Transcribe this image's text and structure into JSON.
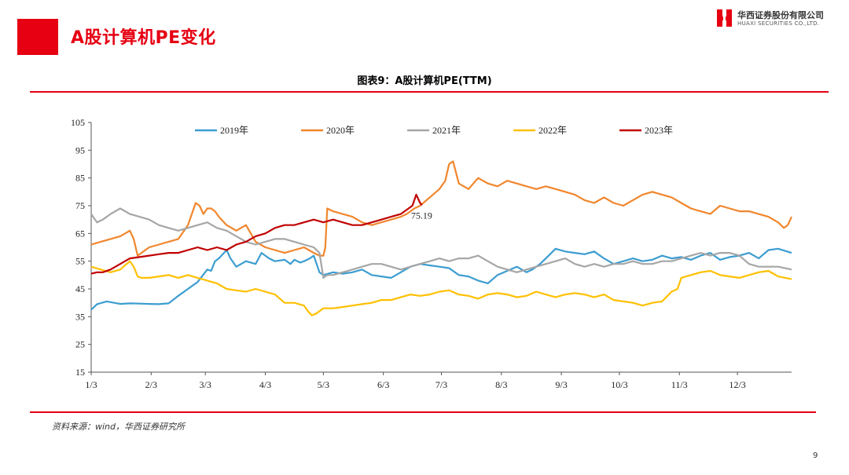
{
  "page": {
    "heading": "A股计算机PE变化",
    "page_number": "9"
  },
  "logo": {
    "cn": "华西证券股份有限公司",
    "en": "HUAXI SECURITIES CO.,LTD."
  },
  "chart_title": "图表9：A股计算机PE(TTM)",
  "source": "资料来源：wind，华西证券研究所",
  "colors": {
    "accent": "#e60012"
  },
  "chart_data": {
    "type": "line",
    "title": "图表9：A股计算机PE(TTM)",
    "xlabel": "",
    "ylabel": "",
    "x_ticks": [
      "1/3",
      "2/3",
      "3/3",
      "4/3",
      "5/3",
      "6/3",
      "7/3",
      "8/3",
      "9/3",
      "10/3",
      "11/3",
      "12/3"
    ],
    "x_tick_days": [
      0,
      31,
      59,
      90,
      120,
      151,
      181,
      212,
      243,
      273,
      304,
      334
    ],
    "xlim_days": [
      0,
      362
    ],
    "ylim": [
      15,
      105
    ],
    "y_ticks": [
      15,
      25,
      35,
      45,
      55,
      65,
      75,
      85,
      95,
      105
    ],
    "grid": false,
    "legend_position": "top",
    "annotation": {
      "text": "75.19",
      "x_day": 171,
      "y": 75.19
    },
    "series": [
      {
        "name": "2019年",
        "color": "#3c9dd0",
        "x": [
          0,
          3,
          8,
          15,
          20,
          25,
          30,
          35,
          40,
          45,
          50,
          55,
          60,
          62,
          64,
          66,
          70,
          72,
          75,
          80,
          85,
          88,
          90,
          92,
          95,
          100,
          103,
          105,
          108,
          110,
          113,
          115,
          118,
          120,
          125,
          130,
          135,
          140,
          145,
          150,
          155,
          160,
          165,
          170,
          175,
          180,
          185,
          190,
          195,
          200,
          205,
          210,
          215,
          220,
          225,
          228,
          230,
          232,
          235,
          240,
          245,
          250,
          255,
          260,
          265,
          270,
          275,
          280,
          285,
          290,
          295,
          300,
          305,
          310,
          315,
          320,
          325,
          330,
          335,
          340,
          345,
          350,
          355,
          362
        ],
        "values": [
          37.5,
          39.5,
          40.5,
          39.6,
          39.8,
          39.7,
          39.6,
          39.5,
          39.8,
          42.5,
          45,
          47.5,
          52,
          51.5,
          55,
          56,
          59,
          56,
          53,
          55,
          54,
          58,
          57,
          56,
          55,
          55.5,
          54,
          55.5,
          54.5,
          55,
          56,
          57,
          51,
          50,
          51,
          50.5,
          51,
          52,
          50,
          49.5,
          49,
          51,
          53,
          54,
          53.5,
          53,
          52.5,
          50,
          49.5,
          48,
          47,
          50,
          51.5,
          53,
          51,
          52,
          53,
          54,
          56,
          59.5,
          58.5,
          58,
          57.5,
          58.5,
          56,
          54,
          55,
          56,
          55,
          55.5,
          57,
          56,
          56.5,
          55.5,
          57,
          58,
          55.5,
          56.5,
          57,
          58,
          56,
          59,
          59.5,
          58
        ]
      },
      {
        "name": "2020年",
        "color": "#f0862d",
        "x": [
          0,
          5,
          10,
          15,
          20,
          22,
          24,
          26,
          28,
          30,
          35,
          40,
          45,
          50,
          52,
          54,
          56,
          58,
          60,
          62,
          64,
          66,
          70,
          75,
          80,
          85,
          90,
          95,
          100,
          105,
          110,
          115,
          118,
          120,
          121,
          122,
          125,
          130,
          135,
          140,
          145,
          150,
          155,
          160,
          163,
          165,
          167,
          170,
          175,
          180,
          183,
          185,
          187,
          190,
          195,
          200,
          205,
          210,
          215,
          220,
          225,
          230,
          235,
          240,
          245,
          250,
          255,
          260,
          265,
          270,
          275,
          280,
          285,
          290,
          295,
          300,
          305,
          310,
          315,
          320,
          325,
          330,
          335,
          340,
          345,
          350,
          355,
          358,
          360,
          362
        ],
        "values": [
          61,
          62,
          63,
          64,
          66,
          63,
          57,
          58,
          59,
          60,
          61,
          62,
          63,
          68,
          72,
          76,
          75,
          72,
          74,
          74,
          73,
          71,
          68,
          66,
          68,
          62,
          60,
          59,
          58,
          59,
          60,
          58,
          57,
          57,
          60,
          74,
          73,
          72,
          71,
          69,
          68,
          69,
          70,
          71,
          72,
          73,
          74,
          75,
          78,
          81,
          84,
          90,
          91,
          83,
          81,
          85,
          83,
          82,
          84,
          83,
          82,
          81,
          82,
          81,
          80,
          79,
          77,
          76,
          78,
          76,
          75,
          77,
          79,
          80,
          79,
          78,
          76,
          74,
          73,
          72,
          75,
          74,
          73,
          73,
          72,
          71,
          69,
          67,
          68,
          71
        ]
      },
      {
        "name": "2021年",
        "color": "#a6a6a6",
        "x": [
          0,
          3,
          6,
          10,
          15,
          20,
          25,
          30,
          35,
          40,
          45,
          50,
          55,
          60,
          65,
          70,
          75,
          80,
          85,
          90,
          95,
          100,
          105,
          110,
          115,
          118,
          120,
          122,
          125,
          130,
          135,
          140,
          145,
          150,
          155,
          160,
          165,
          170,
          175,
          180,
          185,
          190,
          195,
          200,
          205,
          210,
          215,
          220,
          225,
          230,
          235,
          240,
          245,
          250,
          255,
          260,
          265,
          270,
          275,
          280,
          285,
          290,
          295,
          300,
          305,
          310,
          315,
          320,
          325,
          330,
          335,
          340,
          345,
          350,
          355,
          362
        ],
        "values": [
          72,
          69,
          70,
          72,
          74,
          72,
          71,
          70,
          68,
          67,
          66,
          67,
          68,
          69,
          67,
          66,
          64,
          62,
          61,
          62,
          63,
          63,
          62,
          61,
          60,
          58,
          49,
          50,
          50,
          51,
          52,
          53,
          54,
          54,
          53,
          52,
          53,
          54,
          55,
          56,
          55,
          56,
          56,
          57,
          55,
          53,
          52,
          51,
          52,
          53,
          54,
          55,
          56,
          54,
          53,
          54,
          53,
          54,
          54,
          55,
          54,
          54,
          55,
          55,
          56,
          57,
          58,
          57,
          58,
          58,
          57,
          54,
          53,
          53,
          53,
          52
        ]
      },
      {
        "name": "2022年",
        "color": "#ffc000",
        "x": [
          0,
          5,
          10,
          15,
          20,
          22,
          24,
          26,
          28,
          30,
          35,
          40,
          45,
          50,
          55,
          60,
          65,
          70,
          75,
          80,
          85,
          90,
          95,
          100,
          105,
          110,
          112,
          114,
          116,
          118,
          120,
          125,
          130,
          135,
          140,
          145,
          150,
          155,
          160,
          165,
          170,
          175,
          180,
          185,
          190,
          195,
          200,
          205,
          210,
          215,
          220,
          225,
          230,
          235,
          240,
          245,
          250,
          255,
          260,
          265,
          270,
          275,
          280,
          285,
          290,
          295,
          300,
          303,
          305,
          310,
          315,
          320,
          325,
          330,
          335,
          340,
          345,
          350,
          355,
          362
        ],
        "values": [
          53,
          52,
          51,
          52,
          55,
          53,
          49.5,
          49,
          49,
          49,
          49.5,
          50,
          49,
          50,
          49,
          48,
          47,
          45,
          44.5,
          44,
          45,
          44,
          43,
          40,
          40,
          39,
          37,
          35.5,
          36,
          37,
          38,
          38,
          38.5,
          39,
          39.5,
          40,
          41,
          41,
          42,
          43,
          42.5,
          43,
          44,
          44.5,
          43,
          42.5,
          41.5,
          43,
          43.5,
          43,
          42,
          42.5,
          44,
          43,
          42,
          43,
          43.5,
          43,
          42,
          43,
          41,
          40.5,
          40,
          39,
          40,
          40.5,
          44,
          45,
          49,
          50,
          51,
          51.5,
          50,
          49.5,
          49,
          50,
          51,
          51.5,
          49.5,
          48.5
        ]
      },
      {
        "name": "2023年",
        "color": "#c00000",
        "x": [
          0,
          3,
          6,
          10,
          15,
          20,
          25,
          30,
          35,
          40,
          45,
          50,
          55,
          60,
          65,
          70,
          75,
          80,
          85,
          90,
          95,
          100,
          105,
          110,
          115,
          120,
          125,
          130,
          135,
          140,
          145,
          150,
          155,
          160,
          162,
          164,
          166,
          168,
          170,
          171
        ],
        "values": [
          50.5,
          51,
          51,
          52,
          54,
          56,
          56.5,
          57,
          57.5,
          58,
          58,
          59,
          60,
          59,
          60,
          59,
          61,
          62,
          64,
          65,
          67,
          68,
          68,
          69,
          70,
          69,
          70,
          69,
          68,
          68,
          69,
          70,
          71,
          72,
          73,
          74,
          75,
          79,
          76,
          75.19
        ]
      }
    ]
  }
}
